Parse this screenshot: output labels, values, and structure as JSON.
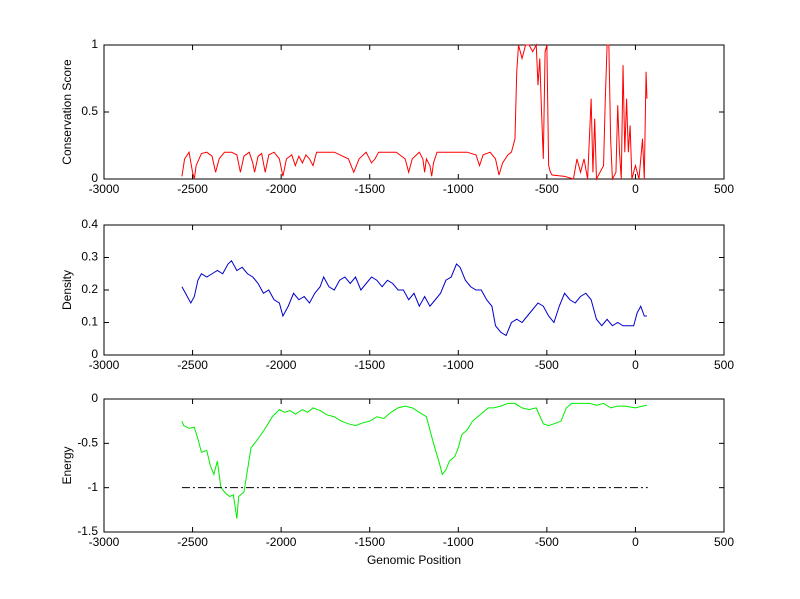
{
  "chart_data": [
    {
      "type": "line",
      "ylabel": "Conservation Score",
      "xlim": [
        -3000,
        500
      ],
      "xticks": [
        -3000,
        -2500,
        -2000,
        -1500,
        -1000,
        -500,
        0,
        500
      ],
      "ylim": [
        0,
        1
      ],
      "yticks": [
        0,
        0.5,
        1
      ],
      "series": [
        {
          "color": "#ff0000",
          "style": "solid",
          "x": [
            -2560,
            -2545,
            -2520,
            -2500,
            -2490,
            -2480,
            -2450,
            -2420,
            -2390,
            -2370,
            -2350,
            -2320,
            -2280,
            -2250,
            -2230,
            -2210,
            -2180,
            -2160,
            -2150,
            -2130,
            -2110,
            -2090,
            -2070,
            -2040,
            -2010,
            -1990,
            -1970,
            -1940,
            -1920,
            -1900,
            -1880,
            -1860,
            -1840,
            -1820,
            -1800,
            -1700,
            -1620,
            -1590,
            -1560,
            -1520,
            -1490,
            -1470,
            -1450,
            -1350,
            -1300,
            -1280,
            -1260,
            -1220,
            -1200,
            -1190,
            -1180,
            -1160,
            -1150,
            -1140,
            -1120,
            -950,
            -900,
            -880,
            -860,
            -820,
            -790,
            -770,
            -750,
            -720,
            -700,
            -680,
            -670,
            -660,
            -640,
            -620,
            -600,
            -580,
            -560,
            -550,
            -540,
            -530,
            -520,
            -510,
            -500,
            -490,
            -480,
            -470,
            -400,
            -350,
            -330,
            -310,
            -290,
            -270,
            -250,
            -240,
            -230,
            -220,
            -180,
            -170,
            -160,
            -150,
            -140,
            -130,
            -110,
            -100,
            -90,
            -80,
            -70,
            -60,
            -50,
            -40,
            -30,
            -20,
            0,
            20,
            40,
            50,
            60,
            65
          ],
          "values": [
            0.02,
            0.15,
            0.2,
            0.05,
            0.0,
            0.1,
            0.19,
            0.2,
            0.17,
            0.05,
            0.15,
            0.2,
            0.2,
            0.18,
            0.05,
            0.17,
            0.2,
            0.12,
            0.05,
            0.17,
            0.19,
            0.05,
            0.18,
            0.2,
            0.15,
            0.02,
            0.15,
            0.18,
            0.1,
            0.17,
            0.12,
            0.18,
            0.15,
            0.1,
            0.2,
            0.2,
            0.15,
            0.05,
            0.15,
            0.2,
            0.12,
            0.15,
            0.2,
            0.2,
            0.15,
            0.05,
            0.15,
            0.2,
            0.15,
            0.05,
            0.15,
            0.1,
            0.02,
            0.12,
            0.2,
            0.2,
            0.18,
            0.1,
            0.18,
            0.2,
            0.15,
            0.03,
            0.12,
            0.18,
            0.2,
            0.3,
            0.8,
            1,
            0.9,
            1,
            1,
            0.95,
            1,
            0.7,
            0.9,
            0.5,
            0.15,
            0.95,
            1,
            0.1,
            0.05,
            0.03,
            0.02,
            0.0,
            0.15,
            0.05,
            0.15,
            0.0,
            0.6,
            0.05,
            0.45,
            0.0,
            0.1,
            0.6,
            1,
            1,
            0.3,
            0.0,
            0.05,
            0.55,
            0.2,
            0.0,
            0.85,
            0.2,
            0.6,
            0.2,
            0.4,
            0.0,
            0.1,
            0.0,
            0.3,
            0.0,
            0.8,
            0.6
          ]
        }
      ]
    },
    {
      "type": "line",
      "ylabel": "Density",
      "xlim": [
        -3000,
        500
      ],
      "xticks": [
        -3000,
        -2500,
        -2000,
        -1500,
        -1000,
        -500,
        0,
        500
      ],
      "ylim": [
        0,
        0.4
      ],
      "yticks": [
        0,
        0.1,
        0.2,
        0.3,
        0.4
      ],
      "series": [
        {
          "color": "#0000cc",
          "style": "solid",
          "x": [
            -2560,
            -2540,
            -2510,
            -2490,
            -2470,
            -2450,
            -2420,
            -2390,
            -2360,
            -2330,
            -2300,
            -2280,
            -2250,
            -2220,
            -2190,
            -2160,
            -2130,
            -2100,
            -2070,
            -2040,
            -2010,
            -1990,
            -1960,
            -1930,
            -1900,
            -1870,
            -1840,
            -1810,
            -1780,
            -1760,
            -1730,
            -1700,
            -1670,
            -1640,
            -1610,
            -1580,
            -1550,
            -1520,
            -1490,
            -1460,
            -1430,
            -1400,
            -1370,
            -1340,
            -1310,
            -1280,
            -1250,
            -1220,
            -1190,
            -1160,
            -1130,
            -1100,
            -1070,
            -1040,
            -1010,
            -990,
            -960,
            -930,
            -900,
            -870,
            -840,
            -810,
            -790,
            -760,
            -730,
            -700,
            -670,
            -640,
            -610,
            -580,
            -550,
            -520,
            -490,
            -460,
            -430,
            -400,
            -370,
            -340,
            -310,
            -280,
            -250,
            -220,
            -190,
            -160,
            -130,
            -100,
            -70,
            -40,
            -10,
            10,
            30,
            50,
            65
          ],
          "values": [
            0.21,
            0.19,
            0.16,
            0.18,
            0.23,
            0.25,
            0.24,
            0.25,
            0.26,
            0.25,
            0.28,
            0.29,
            0.26,
            0.27,
            0.25,
            0.24,
            0.22,
            0.19,
            0.2,
            0.17,
            0.16,
            0.12,
            0.15,
            0.19,
            0.17,
            0.18,
            0.16,
            0.19,
            0.21,
            0.24,
            0.21,
            0.2,
            0.23,
            0.24,
            0.22,
            0.24,
            0.2,
            0.22,
            0.24,
            0.23,
            0.21,
            0.23,
            0.22,
            0.2,
            0.2,
            0.17,
            0.19,
            0.15,
            0.18,
            0.15,
            0.17,
            0.19,
            0.23,
            0.24,
            0.28,
            0.27,
            0.23,
            0.21,
            0.2,
            0.2,
            0.17,
            0.15,
            0.09,
            0.07,
            0.06,
            0.1,
            0.11,
            0.1,
            0.12,
            0.14,
            0.16,
            0.15,
            0.12,
            0.1,
            0.15,
            0.19,
            0.17,
            0.16,
            0.18,
            0.19,
            0.17,
            0.11,
            0.09,
            0.11,
            0.09,
            0.1,
            0.09,
            0.09,
            0.09,
            0.13,
            0.15,
            0.12,
            0.12
          ]
        }
      ]
    },
    {
      "type": "line",
      "ylabel": "Energy",
      "xlabel": "Genomic Position",
      "xlim": [
        -3000,
        500
      ],
      "xticks": [
        -3000,
        -2500,
        -2000,
        -1500,
        -1000,
        -500,
        0,
        500
      ],
      "ylim": [
        -1.5,
        0
      ],
      "yticks": [
        -1.5,
        -1,
        -0.5,
        0
      ],
      "series": [
        {
          "color": "#00ee00",
          "style": "solid",
          "x": [
            -2560,
            -2550,
            -2520,
            -2490,
            -2470,
            -2450,
            -2420,
            -2400,
            -2380,
            -2360,
            -2340,
            -2310,
            -2290,
            -2270,
            -2250,
            -2240,
            -2210,
            -2190,
            -2170,
            -2150,
            -2120,
            -2080,
            -2050,
            -2010,
            -1980,
            -1950,
            -1920,
            -1880,
            -1850,
            -1820,
            -1780,
            -1740,
            -1700,
            -1660,
            -1620,
            -1580,
            -1540,
            -1500,
            -1460,
            -1420,
            -1380,
            -1340,
            -1300,
            -1260,
            -1220,
            -1180,
            -1160,
            -1140,
            -1110,
            -1090,
            -1070,
            -1050,
            -1020,
            -1000,
            -980,
            -950,
            -920,
            -890,
            -860,
            -830,
            -800,
            -760,
            -720,
            -680,
            -640,
            -600,
            -560,
            -520,
            -490,
            -460,
            -420,
            -390,
            -360,
            -300,
            -260,
            -220,
            -180,
            -140,
            -100,
            -60,
            0,
            40,
            65
          ],
          "values": [
            -0.25,
            -0.3,
            -0.33,
            -0.32,
            -0.45,
            -0.6,
            -0.58,
            -0.75,
            -0.85,
            -0.7,
            -1.0,
            -1.07,
            -1.1,
            -1.08,
            -1.35,
            -1.1,
            -1.05,
            -0.8,
            -0.55,
            -0.5,
            -0.42,
            -0.3,
            -0.2,
            -0.12,
            -0.15,
            -0.13,
            -0.17,
            -0.12,
            -0.15,
            -0.1,
            -0.13,
            -0.18,
            -0.2,
            -0.25,
            -0.28,
            -0.3,
            -0.27,
            -0.25,
            -0.2,
            -0.22,
            -0.15,
            -0.1,
            -0.08,
            -0.1,
            -0.15,
            -0.2,
            -0.35,
            -0.5,
            -0.7,
            -0.85,
            -0.8,
            -0.7,
            -0.65,
            -0.55,
            -0.4,
            -0.35,
            -0.25,
            -0.2,
            -0.15,
            -0.1,
            -0.1,
            -0.08,
            -0.05,
            -0.05,
            -0.1,
            -0.12,
            -0.1,
            -0.28,
            -0.3,
            -0.28,
            -0.25,
            -0.1,
            -0.05,
            -0.05,
            -0.05,
            -0.07,
            -0.05,
            -0.1,
            -0.08,
            -0.08,
            -0.1,
            -0.08,
            -0.07
          ]
        },
        {
          "color": "#000000",
          "style": "dashdot",
          "x": [
            -2560,
            70
          ],
          "values": [
            -1,
            -1
          ]
        }
      ]
    }
  ]
}
